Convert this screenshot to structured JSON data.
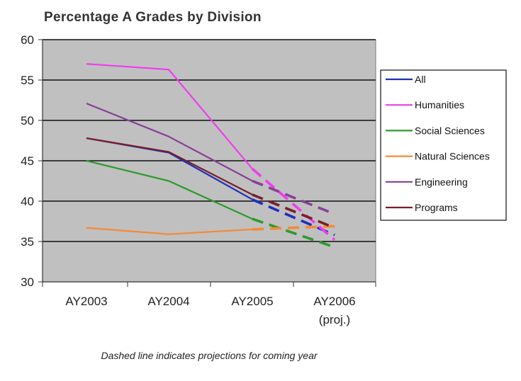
{
  "chart_data": {
    "type": "line",
    "title": "Percentage A Grades by Division",
    "note": "Dashed line indicates projections for coming year",
    "xlabel": "",
    "ylabel": "",
    "categories": [
      "AY2003",
      "AY2004",
      "AY2005",
      "AY2006\n(proj.)"
    ],
    "ylim": [
      30,
      60
    ],
    "yticks": [
      30,
      35,
      40,
      45,
      50,
      55,
      60
    ],
    "grid": true,
    "legend_position": "right",
    "plot_background": "#c0c0c0",
    "projection_style": "dashed from AY2005 to AY2006",
    "series": [
      {
        "name": "All",
        "color": "#1f2fbf",
        "values": [
          47.8,
          46.0,
          40.2,
          35.8
        ]
      },
      {
        "name": "Humanities",
        "color": "#f03cf0",
        "values": [
          57.0,
          56.3,
          44.0,
          35.2
        ]
      },
      {
        "name": "Social Sciences",
        "color": "#2e9a2e",
        "values": [
          45.0,
          42.5,
          37.8,
          34.3
        ]
      },
      {
        "name": "Natural Sciences",
        "color": "#f68a32",
        "values": [
          36.7,
          35.9,
          36.5,
          36.9
        ]
      },
      {
        "name": "Engineering",
        "color": "#8a3f99",
        "values": [
          52.1,
          48.0,
          42.5,
          38.4
        ]
      },
      {
        "name": "Programs",
        "color": "#7a1f2a",
        "values": [
          47.8,
          46.1,
          40.8,
          36.7
        ]
      }
    ]
  }
}
